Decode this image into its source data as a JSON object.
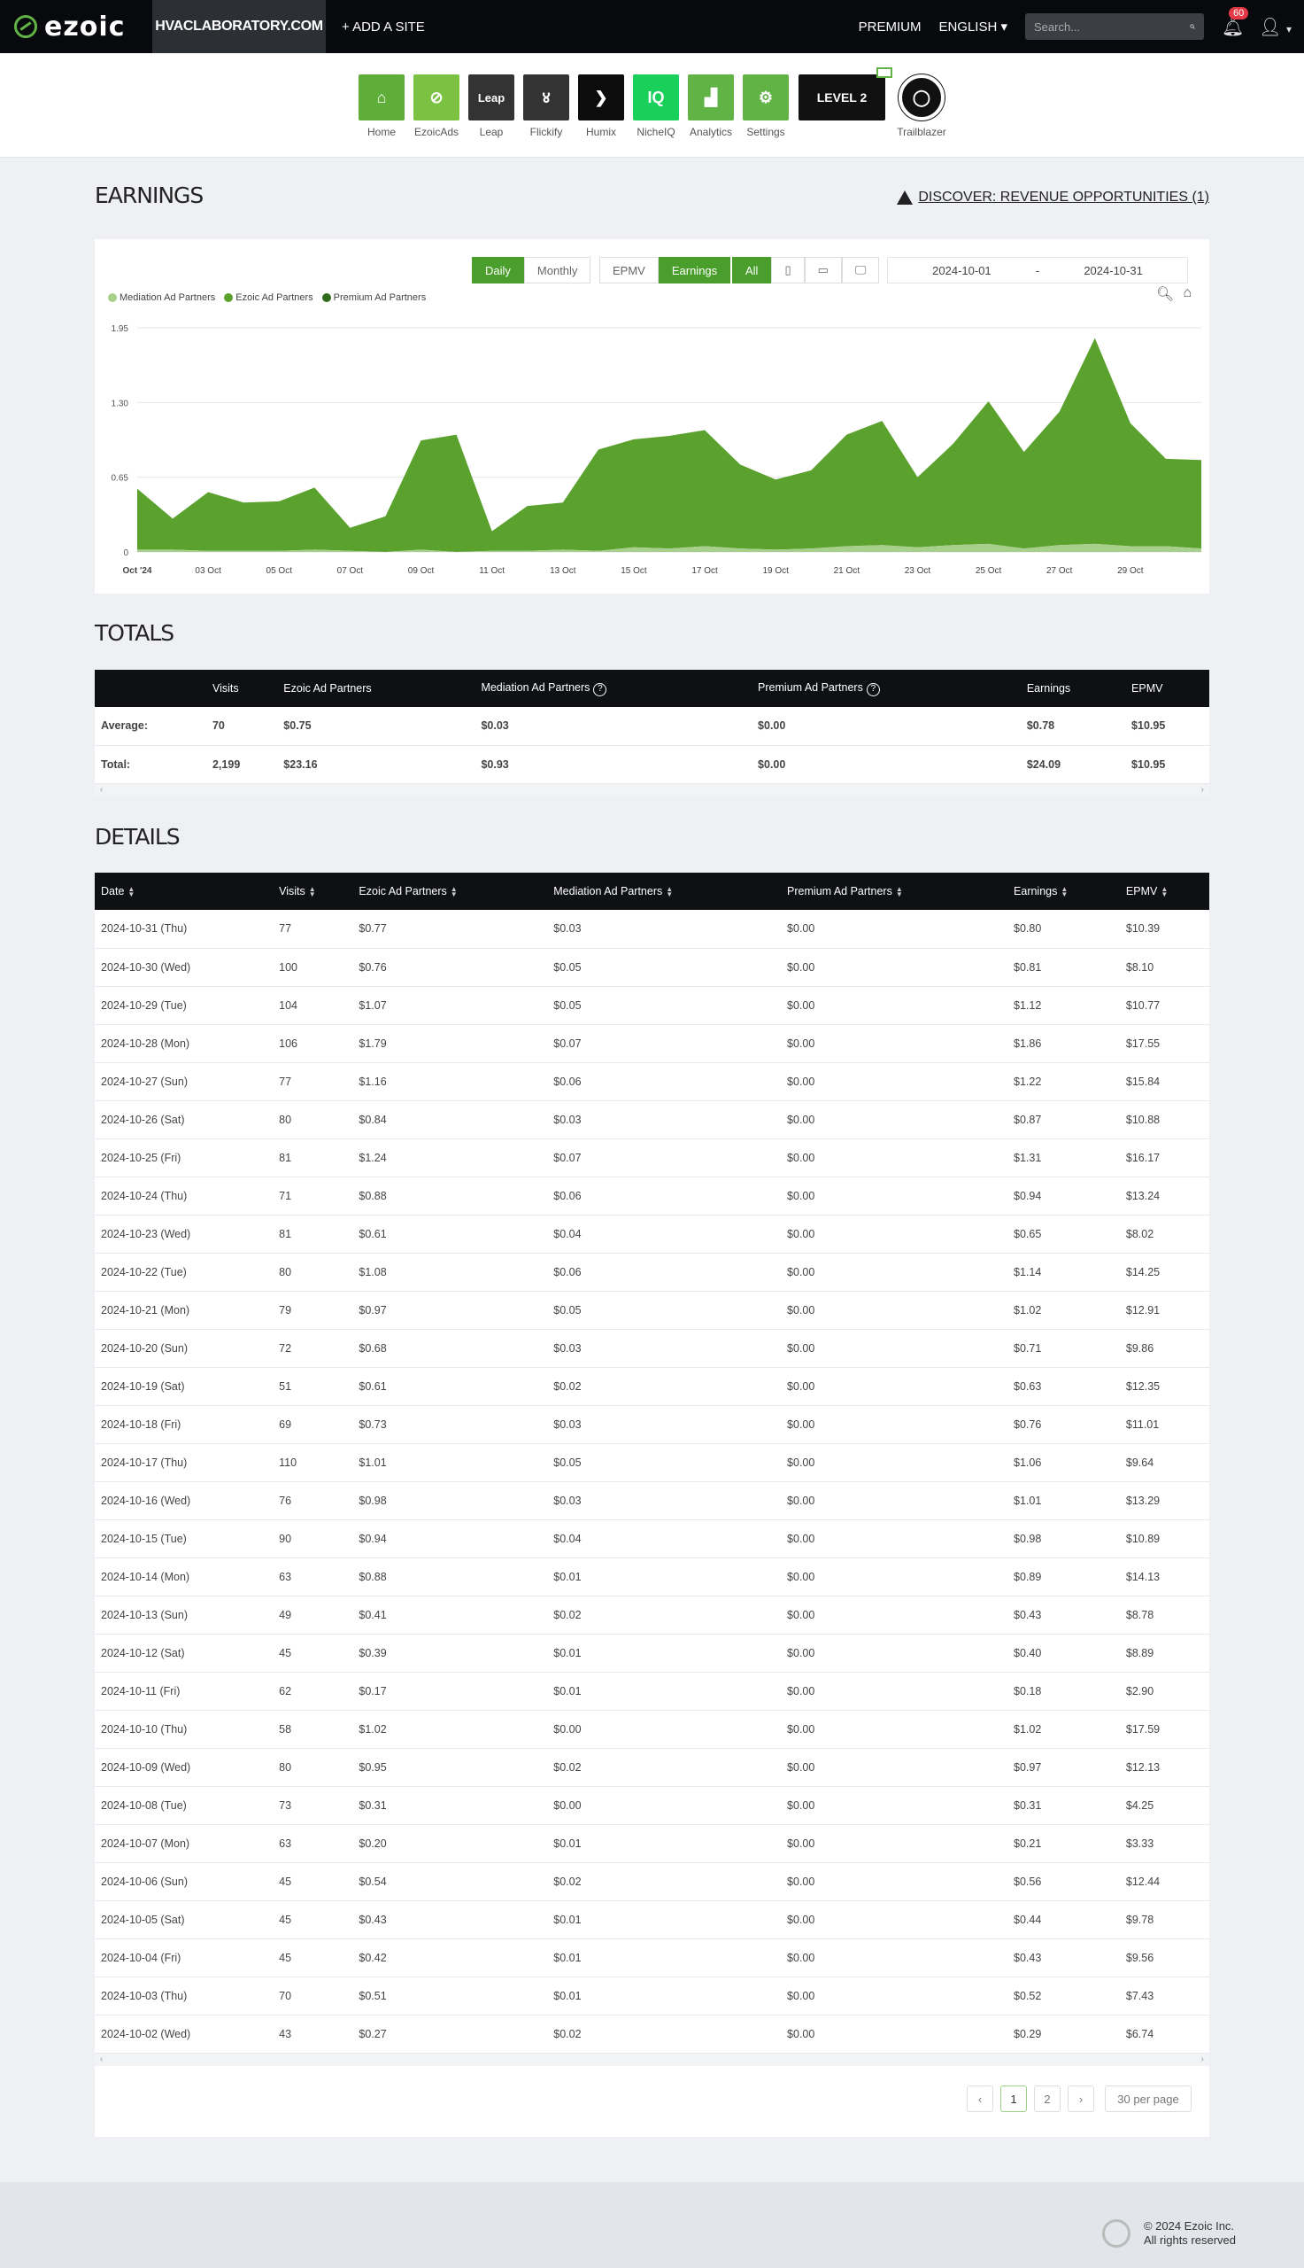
{
  "nav": {
    "logo": "ezoic",
    "site": "HVACLABORATORY.COM",
    "add_site": "+ ADD A SITE",
    "premium": "PREMIUM",
    "language": "ENGLISH",
    "search_placeholder": "Search...",
    "notification_count": "60"
  },
  "apps": [
    {
      "label": "Home",
      "color": "#5fae3a",
      "glyph": "⌂"
    },
    {
      "label": "EzoicAds",
      "color": "#7cc242",
      "glyph": "⊘"
    },
    {
      "label": "Leap",
      "color": "#333333",
      "glyph": "Leap"
    },
    {
      "label": "Flickify",
      "color": "#333333",
      "glyph": "४"
    },
    {
      "label": "Humix",
      "color": "#0c0c0c",
      "glyph": "❯"
    },
    {
      "label": "NicheIQ",
      "color": "#18d05a",
      "glyph": "IQ"
    },
    {
      "label": "Analytics",
      "color": "#62b346",
      "glyph": "▟"
    },
    {
      "label": "Settings",
      "color": "#62b346",
      "glyph": "⚙"
    }
  ],
  "level_badge": "LEVEL 2",
  "trailblazer": "Trailblazer",
  "earnings_title": "EARNINGS",
  "discover": "DISCOVER: REVENUE OPPORTUNITIES (1)",
  "toolbar": {
    "daily": "Daily",
    "monthly": "Monthly",
    "epmv": "EPMV",
    "earnings": "Earnings",
    "all": "All",
    "date_from": "2024-10-01",
    "date_sep": "-",
    "date_to": "2024-10-31"
  },
  "chart_data": {
    "type": "area",
    "ylim": [
      0,
      1.95
    ],
    "yticks": [
      "0",
      "0.65",
      "1.30",
      "1.95"
    ],
    "xticks": [
      "Oct '24",
      "03 Oct",
      "05 Oct",
      "07 Oct",
      "09 Oct",
      "11 Oct",
      "13 Oct",
      "15 Oct",
      "17 Oct",
      "19 Oct",
      "21 Oct",
      "23 Oct",
      "25 Oct",
      "27 Oct",
      "29 Oct"
    ],
    "x": [
      "2024-10-01",
      "2024-10-02",
      "2024-10-03",
      "2024-10-04",
      "2024-10-05",
      "2024-10-06",
      "2024-10-07",
      "2024-10-08",
      "2024-10-09",
      "2024-10-10",
      "2024-10-11",
      "2024-10-12",
      "2024-10-13",
      "2024-10-14",
      "2024-10-15",
      "2024-10-16",
      "2024-10-17",
      "2024-10-18",
      "2024-10-19",
      "2024-10-20",
      "2024-10-21",
      "2024-10-22",
      "2024-10-23",
      "2024-10-24",
      "2024-10-25",
      "2024-10-26",
      "2024-10-27",
      "2024-10-28",
      "2024-10-29",
      "2024-10-30",
      "2024-10-31"
    ],
    "series": [
      {
        "name": "Mediation Ad Partners",
        "color": "#a8d08d",
        "values": [
          0.02,
          0.02,
          0.01,
          0.01,
          0.01,
          0.02,
          0.01,
          0.0,
          0.02,
          0.0,
          0.01,
          0.01,
          0.02,
          0.01,
          0.04,
          0.03,
          0.05,
          0.03,
          0.02,
          0.03,
          0.05,
          0.06,
          0.04,
          0.06,
          0.07,
          0.03,
          0.06,
          0.07,
          0.05,
          0.05,
          0.03
        ]
      },
      {
        "name": "Ezoic Ad Partners",
        "color": "#5aa12e",
        "values": [
          0.53,
          0.27,
          0.51,
          0.42,
          0.43,
          0.54,
          0.2,
          0.31,
          0.95,
          1.02,
          0.17,
          0.39,
          0.41,
          0.88,
          0.94,
          0.98,
          1.01,
          0.73,
          0.61,
          0.68,
          0.97,
          1.08,
          0.61,
          0.88,
          1.24,
          0.84,
          1.16,
          1.79,
          1.07,
          0.76,
          0.77
        ]
      },
      {
        "name": "Premium Ad Partners",
        "color": "#2f6b1a",
        "values": [
          0,
          0,
          0,
          0,
          0,
          0,
          0,
          0,
          0,
          0,
          0,
          0,
          0,
          0,
          0,
          0,
          0,
          0,
          0,
          0,
          0,
          0,
          0,
          0,
          0,
          0,
          0,
          0,
          0,
          0,
          0
        ]
      }
    ]
  },
  "totals_title": "TOTALS",
  "totals": {
    "headers": [
      "",
      "Visits",
      "Ezoic Ad Partners",
      "Mediation Ad Partners",
      "Premium Ad Partners",
      "Earnings",
      "EPMV"
    ],
    "rows": [
      [
        "Average:",
        "70",
        "$0.75",
        "$0.03",
        "$0.00",
        "$0.78",
        "$10.95"
      ],
      [
        "Total:",
        "2,199",
        "$23.16",
        "$0.93",
        "$0.00",
        "$24.09",
        "$10.95"
      ]
    ]
  },
  "details_title": "DETAILS",
  "details": {
    "headers": [
      "Date",
      "Visits",
      "Ezoic Ad Partners",
      "Mediation Ad Partners",
      "Premium Ad Partners",
      "Earnings",
      "EPMV"
    ],
    "rows": [
      [
        "2024-10-31 (Thu)",
        "77",
        "$0.77",
        "$0.03",
        "$0.00",
        "$0.80",
        "$10.39"
      ],
      [
        "2024-10-30 (Wed)",
        "100",
        "$0.76",
        "$0.05",
        "$0.00",
        "$0.81",
        "$8.10"
      ],
      [
        "2024-10-29 (Tue)",
        "104",
        "$1.07",
        "$0.05",
        "$0.00",
        "$1.12",
        "$10.77"
      ],
      [
        "2024-10-28 (Mon)",
        "106",
        "$1.79",
        "$0.07",
        "$0.00",
        "$1.86",
        "$17.55"
      ],
      [
        "2024-10-27 (Sun)",
        "77",
        "$1.16",
        "$0.06",
        "$0.00",
        "$1.22",
        "$15.84"
      ],
      [
        "2024-10-26 (Sat)",
        "80",
        "$0.84",
        "$0.03",
        "$0.00",
        "$0.87",
        "$10.88"
      ],
      [
        "2024-10-25 (Fri)",
        "81",
        "$1.24",
        "$0.07",
        "$0.00",
        "$1.31",
        "$16.17"
      ],
      [
        "2024-10-24 (Thu)",
        "71",
        "$0.88",
        "$0.06",
        "$0.00",
        "$0.94",
        "$13.24"
      ],
      [
        "2024-10-23 (Wed)",
        "81",
        "$0.61",
        "$0.04",
        "$0.00",
        "$0.65",
        "$8.02"
      ],
      [
        "2024-10-22 (Tue)",
        "80",
        "$1.08",
        "$0.06",
        "$0.00",
        "$1.14",
        "$14.25"
      ],
      [
        "2024-10-21 (Mon)",
        "79",
        "$0.97",
        "$0.05",
        "$0.00",
        "$1.02",
        "$12.91"
      ],
      [
        "2024-10-20 (Sun)",
        "72",
        "$0.68",
        "$0.03",
        "$0.00",
        "$0.71",
        "$9.86"
      ],
      [
        "2024-10-19 (Sat)",
        "51",
        "$0.61",
        "$0.02",
        "$0.00",
        "$0.63",
        "$12.35"
      ],
      [
        "2024-10-18 (Fri)",
        "69",
        "$0.73",
        "$0.03",
        "$0.00",
        "$0.76",
        "$11.01"
      ],
      [
        "2024-10-17 (Thu)",
        "110",
        "$1.01",
        "$0.05",
        "$0.00",
        "$1.06",
        "$9.64"
      ],
      [
        "2024-10-16 (Wed)",
        "76",
        "$0.98",
        "$0.03",
        "$0.00",
        "$1.01",
        "$13.29"
      ],
      [
        "2024-10-15 (Tue)",
        "90",
        "$0.94",
        "$0.04",
        "$0.00",
        "$0.98",
        "$10.89"
      ],
      [
        "2024-10-14 (Mon)",
        "63",
        "$0.88",
        "$0.01",
        "$0.00",
        "$0.89",
        "$14.13"
      ],
      [
        "2024-10-13 (Sun)",
        "49",
        "$0.41",
        "$0.02",
        "$0.00",
        "$0.43",
        "$8.78"
      ],
      [
        "2024-10-12 (Sat)",
        "45",
        "$0.39",
        "$0.01",
        "$0.00",
        "$0.40",
        "$8.89"
      ],
      [
        "2024-10-11 (Fri)",
        "62",
        "$0.17",
        "$0.01",
        "$0.00",
        "$0.18",
        "$2.90"
      ],
      [
        "2024-10-10 (Thu)",
        "58",
        "$1.02",
        "$0.00",
        "$0.00",
        "$1.02",
        "$17.59"
      ],
      [
        "2024-10-09 (Wed)",
        "80",
        "$0.95",
        "$0.02",
        "$0.00",
        "$0.97",
        "$12.13"
      ],
      [
        "2024-10-08 (Tue)",
        "73",
        "$0.31",
        "$0.00",
        "$0.00",
        "$0.31",
        "$4.25"
      ],
      [
        "2024-10-07 (Mon)",
        "63",
        "$0.20",
        "$0.01",
        "$0.00",
        "$0.21",
        "$3.33"
      ],
      [
        "2024-10-06 (Sun)",
        "45",
        "$0.54",
        "$0.02",
        "$0.00",
        "$0.56",
        "$12.44"
      ],
      [
        "2024-10-05 (Sat)",
        "45",
        "$0.43",
        "$0.01",
        "$0.00",
        "$0.44",
        "$9.78"
      ],
      [
        "2024-10-04 (Fri)",
        "45",
        "$0.42",
        "$0.01",
        "$0.00",
        "$0.43",
        "$9.56"
      ],
      [
        "2024-10-03 (Thu)",
        "70",
        "$0.51",
        "$0.01",
        "$0.00",
        "$0.52",
        "$7.43"
      ],
      [
        "2024-10-02 (Wed)",
        "43",
        "$0.27",
        "$0.02",
        "$0.00",
        "$0.29",
        "$6.74"
      ]
    ]
  },
  "pagination": {
    "prev": "‹",
    "pages": [
      "1",
      "2"
    ],
    "next": "›",
    "per_page": "30 per page"
  },
  "footer": {
    "copyright": "© 2024 Ezoic Inc.",
    "rights": "All rights reserved"
  }
}
